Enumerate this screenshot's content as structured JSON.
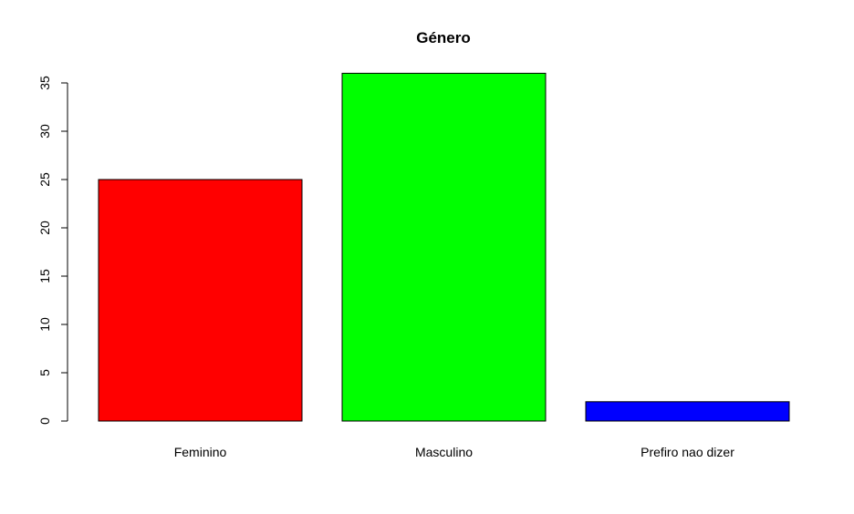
{
  "chart_data": {
    "type": "bar",
    "title": "Género",
    "xlabel": "",
    "ylabel": "",
    "categories": [
      "Feminino",
      "Masculino",
      "Prefiro nao dizer"
    ],
    "values": [
      25,
      36,
      2
    ],
    "colors": [
      "#ff0000",
      "#00ff00",
      "#0000ff"
    ],
    "ylim": [
      0,
      35
    ],
    "yticks": [
      0,
      5,
      10,
      15,
      20,
      25,
      30,
      35
    ],
    "grid": false,
    "legend": "none"
  }
}
